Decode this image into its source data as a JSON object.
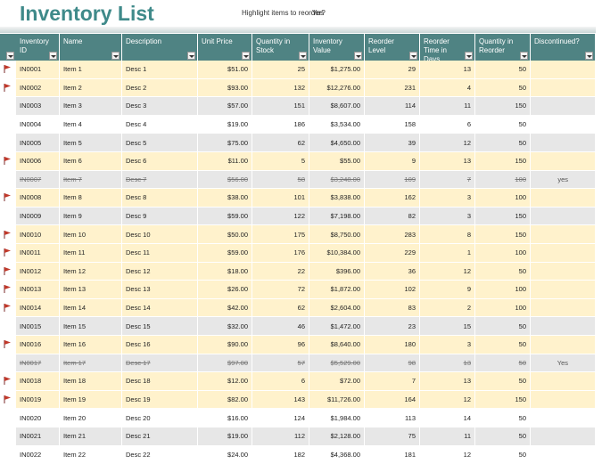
{
  "header": {
    "title": "Inventory List",
    "prompt": "Highlight items to reorder?",
    "prompt_value": "Yes"
  },
  "table": {
    "columns": [
      "Inventory ID",
      "Name",
      "Description",
      "Unit Price",
      "Quantity in Stock",
      "Inventory Value",
      "Reorder Level",
      "Reorder Time in Days",
      "Quantity in Reorder",
      "Discontinued?"
    ],
    "rows": [
      {
        "cells": [
          "IN0001",
          "Item 1",
          "Desc 1",
          "$51.00",
          "25",
          "$1,275.00",
          "29",
          "13",
          "50"
        ],
        "flag": true
      },
      {
        "cells": [
          "IN0002",
          "Item 2",
          "Desc 2",
          "$93.00",
          "132",
          "$12,276.00",
          "231",
          "4",
          "50"
        ],
        "flag": true
      },
      {
        "cells": [
          "IN0003",
          "Item 3",
          "Desc 3",
          "$57.00",
          "151",
          "$8,607.00",
          "114",
          "11",
          "150"
        ],
        "flag": false
      },
      {
        "cells": [
          "IN0004",
          "Item 4",
          "Desc 4",
          "$19.00",
          "186",
          "$3,534.00",
          "158",
          "6",
          "50"
        ],
        "flag": false
      },
      {
        "cells": [
          "IN0005",
          "Item 5",
          "Desc 5",
          "$75.00",
          "62",
          "$4,650.00",
          "39",
          "12",
          "50"
        ],
        "flag": false
      },
      {
        "cells": [
          "IN0006",
          "Item 6",
          "Desc 6",
          "$11.00",
          "5",
          "$55.00",
          "9",
          "13",
          "150"
        ],
        "flag": true
      },
      {
        "cells": [
          "IN0007",
          "Item 7",
          "Desc 7",
          "$56.00",
          "58",
          "$3,248.00",
          "109",
          "7",
          "100"
        ],
        "flag": false,
        "discontinued": "yes"
      },
      {
        "cells": [
          "IN0008",
          "Item 8",
          "Desc 8",
          "$38.00",
          "101",
          "$3,838.00",
          "162",
          "3",
          "100"
        ],
        "flag": true
      },
      {
        "cells": [
          "IN0009",
          "Item 9",
          "Desc 9",
          "$59.00",
          "122",
          "$7,198.00",
          "82",
          "3",
          "150"
        ],
        "flag": false
      },
      {
        "cells": [
          "IN0010",
          "Item 10",
          "Desc 10",
          "$50.00",
          "175",
          "$8,750.00",
          "283",
          "8",
          "150"
        ],
        "flag": true
      },
      {
        "cells": [
          "IN0011",
          "Item 11",
          "Desc 11",
          "$59.00",
          "176",
          "$10,384.00",
          "229",
          "1",
          "100"
        ],
        "flag": true
      },
      {
        "cells": [
          "IN0012",
          "Item 12",
          "Desc 12",
          "$18.00",
          "22",
          "$396.00",
          "36",
          "12",
          "50"
        ],
        "flag": true
      },
      {
        "cells": [
          "IN0013",
          "Item 13",
          "Desc 13",
          "$26.00",
          "72",
          "$1,872.00",
          "102",
          "9",
          "100"
        ],
        "flag": true
      },
      {
        "cells": [
          "IN0014",
          "Item 14",
          "Desc 14",
          "$42.00",
          "62",
          "$2,604.00",
          "83",
          "2",
          "100"
        ],
        "flag": true
      },
      {
        "cells": [
          "IN0015",
          "Item 15",
          "Desc 15",
          "$32.00",
          "46",
          "$1,472.00",
          "23",
          "15",
          "50"
        ],
        "flag": false
      },
      {
        "cells": [
          "IN0016",
          "Item 16",
          "Desc 16",
          "$90.00",
          "96",
          "$8,640.00",
          "180",
          "3",
          "50"
        ],
        "flag": true
      },
      {
        "cells": [
          "IN0017",
          "Item 17",
          "Desc 17",
          "$97.00",
          "57",
          "$5,529.00",
          "98",
          "13",
          "50"
        ],
        "flag": false,
        "discontinued": "Yes"
      },
      {
        "cells": [
          "IN0018",
          "Item 18",
          "Desc 18",
          "$12.00",
          "6",
          "$72.00",
          "7",
          "13",
          "50"
        ],
        "flag": true
      },
      {
        "cells": [
          "IN0019",
          "Item 19",
          "Desc 19",
          "$82.00",
          "143",
          "$11,726.00",
          "164",
          "12",
          "150"
        ],
        "flag": true
      },
      {
        "cells": [
          "IN0020",
          "Item 20",
          "Desc 20",
          "$16.00",
          "124",
          "$1,984.00",
          "113",
          "14",
          "50"
        ],
        "flag": false
      },
      {
        "cells": [
          "IN0021",
          "Item 21",
          "Desc 21",
          "$19.00",
          "112",
          "$2,128.00",
          "75",
          "11",
          "50"
        ],
        "flag": false
      },
      {
        "cells": [
          "IN0022",
          "Item 22",
          "Desc 22",
          "$24.00",
          "182",
          "$4,368.00",
          "181",
          "12",
          "50"
        ],
        "flag": false
      }
    ]
  }
}
